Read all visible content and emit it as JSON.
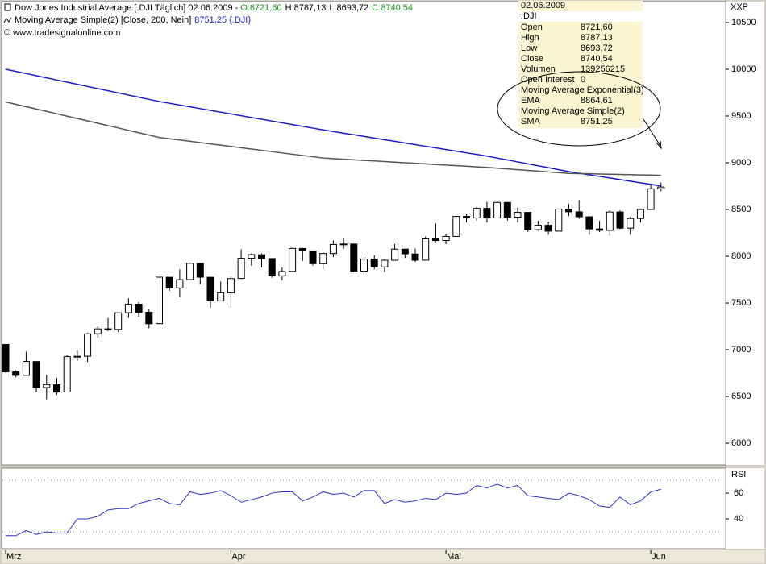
{
  "header": {
    "title": "Dow Jones Industrial Average [.DJI  Täglich] 02.06.2009 -",
    "open": "O:8721,60",
    "high": "H:8787,13",
    "low": "L:8693,72",
    "close": "C:8740,54",
    "indicator": "Moving Average Simple(2) [Close, 200, Nein]",
    "indicator_value": "8751,25 {.DJI}",
    "copyright": "© www.tradesignalonline.com",
    "symbol": "XXP"
  },
  "info_panel": {
    "date": "02.06.2009",
    "instrument": ".DJI",
    "rows": [
      [
        "Open",
        "8721,60"
      ],
      [
        "High",
        "8787,13"
      ],
      [
        "Low",
        "8693,72"
      ],
      [
        "Close",
        "8740,54"
      ],
      [
        "Volumen",
        "139256215"
      ],
      [
        "Open Interest",
        "0"
      ],
      [
        "Moving Average Exponential(3)"
      ],
      [
        "EMA",
        "8864,61"
      ],
      [
        "Moving Average Simple(2)"
      ],
      [
        "SMA",
        "8751,25"
      ]
    ]
  },
  "chart_data": [
    {
      "type": "candlestick",
      "categories": [
        "Mrz",
        null,
        null,
        null,
        null,
        null,
        null,
        null,
        null,
        null,
        null,
        null,
        null,
        null,
        null,
        null,
        null,
        null,
        null,
        null,
        null,
        null,
        "Apr",
        null,
        null,
        null,
        null,
        null,
        null,
        null,
        null,
        null,
        null,
        null,
        null,
        null,
        null,
        null,
        null,
        null,
        null,
        null,
        null,
        "Mai",
        null,
        null,
        null,
        null,
        null,
        null,
        null,
        null,
        null,
        null,
        null,
        null,
        null,
        null,
        null,
        null,
        null,
        null,
        null,
        "Jun",
        null
      ],
      "open": [
        7056,
        6764,
        6726,
        6874,
        6595,
        6625,
        6548,
        6927,
        6931,
        7171,
        7224,
        7217,
        7396,
        7487,
        7401,
        7279,
        7775,
        7661,
        7750,
        7923,
        7775,
        7523,
        7609,
        7762,
        7978,
        8016,
        7975,
        7790,
        7838,
        8083,
        8057,
        7920,
        8029,
        8125,
        8131,
        7841,
        7969,
        7886,
        7957,
        8076,
        8024,
        7958,
        8185,
        8168,
        8212,
        8426,
        8410,
        8512,
        8410,
        8575,
        8418,
        8469,
        8284,
        8331,
        8268,
        8504,
        8475,
        8422,
        8292,
        8277,
        8473,
        8300,
        8404,
        8500,
        8721.6
      ],
      "high": [
        7056,
        6780,
        6980,
        6874,
        6730,
        6700,
        6940,
        6990,
        7180,
        7250,
        7340,
        7400,
        7550,
        7510,
        7430,
        7780,
        7775,
        7860,
        7930,
        7923,
        7775,
        7730,
        7780,
        8075,
        8030,
        8030,
        7975,
        7880,
        8090,
        8090,
        8060,
        8040,
        8170,
        8190,
        8131,
        7990,
        8010,
        7970,
        8130,
        8076,
        8080,
        8210,
        8350,
        8240,
        8430,
        8450,
        8530,
        8580,
        8590,
        8575,
        8520,
        8469,
        8380,
        8370,
        8510,
        8560,
        8600,
        8422,
        8380,
        8490,
        8490,
        8420,
        8510,
        8760,
        8787.13
      ],
      "low": [
        6755,
        6705,
        6726,
        6545,
        6470,
        6520,
        6548,
        6880,
        6870,
        7130,
        7200,
        7190,
        7340,
        7350,
        7230,
        7279,
        7630,
        7560,
        7750,
        7700,
        7450,
        7523,
        7450,
        7762,
        7900,
        7880,
        7770,
        7740,
        7838,
        7950,
        7900,
        7860,
        7990,
        8080,
        7830,
        7780,
        7860,
        7830,
        7957,
        7980,
        7940,
        7958,
        8150,
        8130,
        8212,
        8360,
        8380,
        8360,
        8410,
        8380,
        8360,
        8260,
        8270,
        8230,
        8268,
        8430,
        8400,
        8230,
        8260,
        8220,
        8290,
        8230,
        8360,
        8500,
        8693.72
      ],
      "close": [
        6763,
        6726,
        6875,
        6594,
        6627,
        6547,
        6926,
        6930,
        7170,
        7223,
        7216,
        7395,
        7486,
        7400,
        7278,
        7776,
        7660,
        7749,
        7924,
        7776,
        7522,
        7609,
        7761,
        7978,
        8017,
        7975,
        7789,
        7837,
        8083,
        8058,
        7920,
        8029,
        8125,
        8131,
        7841,
        7969,
        7886,
        7957,
        8076,
        8025,
        7957,
        8185,
        8168,
        8212,
        8426,
        8410,
        8512,
        8409,
        8575,
        8418,
        8469,
        8284,
        8331,
        8268,
        8504,
        8475,
        8422,
        8292,
        8277,
        8473,
        8300,
        8404,
        8500,
        8721,
        8740.54
      ],
      "up_color": "#ffffff",
      "down_color": "#000000",
      "lines": [
        {
          "color": "#1c1cc8",
          "values": [
            10000,
            9977,
            9954,
            9931,
            9908,
            9885,
            9862,
            9839,
            9816,
            9793,
            9770,
            9747,
            9724,
            9701,
            9678,
            9655,
            9636,
            9617,
            9598,
            9579,
            9560,
            9541,
            9522,
            9503,
            9484,
            9465,
            9446,
            9427,
            9408,
            9389,
            9370,
            9351,
            9334,
            9316,
            9299,
            9281,
            9264,
            9246,
            9229,
            9211,
            9194,
            9176,
            9159,
            9141,
            9124,
            9106,
            9089,
            9071,
            9050,
            9030,
            9009,
            8988,
            8968,
            8947,
            8926,
            8905,
            8888,
            8871,
            8854,
            8837,
            8820,
            8803,
            8786,
            8769,
            8751
          ]
        },
        {
          "color": "#555555",
          "values": [
            9650,
            9625,
            9599,
            9574,
            9549,
            9524,
            9498,
            9473,
            9448,
            9422,
            9397,
            9372,
            9346,
            9321,
            9296,
            9270,
            9256,
            9243,
            9229,
            9215,
            9201,
            9188,
            9174,
            9160,
            9146,
            9133,
            9119,
            9105,
            9091,
            9078,
            9064,
            9050,
            9044,
            9038,
            9031,
            9025,
            9019,
            9013,
            9006,
            9000,
            8994,
            8988,
            8981,
            8975,
            8969,
            8963,
            8956,
            8950,
            8942,
            8934,
            8926,
            8918,
            8910,
            8902,
            8894,
            8886,
            8884,
            8882,
            8879,
            8877,
            8875,
            8873,
            8870,
            8868,
            8865
          ]
        }
      ],
      "ylim": [
        5768,
        10715
      ],
      "yticks": [
        10500,
        10000,
        9500,
        9000,
        8500,
        8000,
        7500,
        7000,
        6500,
        6000
      ]
    },
    {
      "type": "line",
      "label": "RSI",
      "color": "#3030d0",
      "values": [
        27,
        27,
        31,
        28,
        30,
        29,
        29,
        40,
        40,
        42,
        47,
        48,
        48,
        52,
        54,
        56,
        52,
        51,
        61,
        59,
        60,
        62,
        58,
        53,
        55,
        57,
        60,
        61,
        61,
        54,
        57,
        61,
        59,
        60,
        57,
        62,
        62,
        52,
        55,
        53,
        54,
        56,
        55,
        60,
        59,
        60,
        66,
        64,
        67,
        64,
        66,
        58,
        57,
        56,
        55,
        60,
        58,
        55,
        50,
        49,
        57,
        51,
        54,
        61,
        63
      ],
      "ylim": [
        17.5,
        78.8
      ],
      "yticks": [
        60,
        40
      ],
      "levels": [
        70,
        30
      ]
    }
  ]
}
